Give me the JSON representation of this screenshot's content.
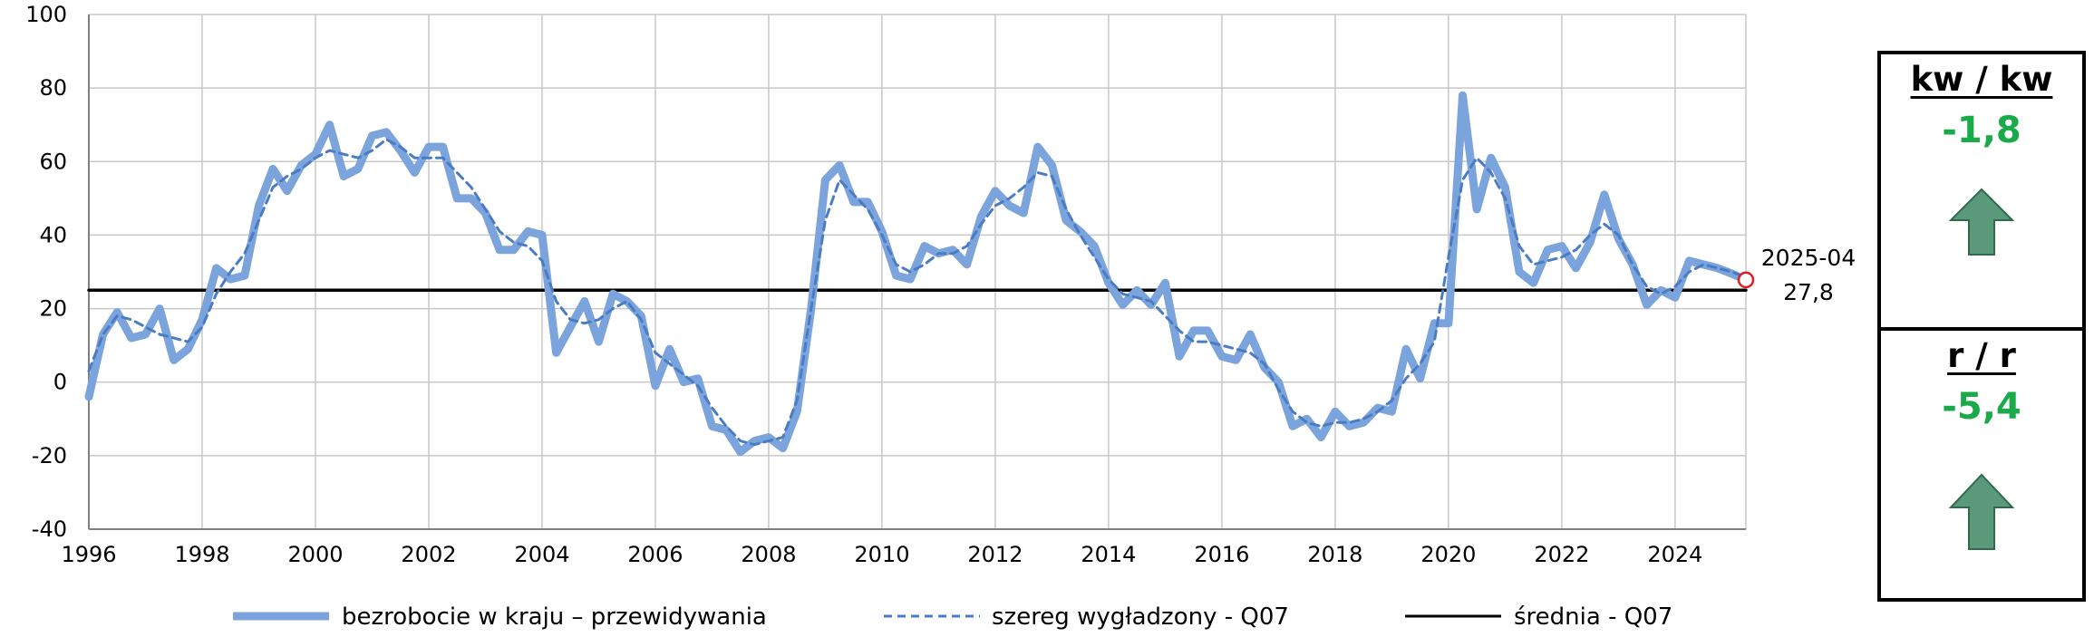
{
  "chart_data": {
    "type": "line",
    "title": "",
    "xlabel": "",
    "ylabel": "",
    "xlim": [
      1996,
      2025.25
    ],
    "ylim": [
      -40,
      100
    ],
    "x_ticks": [
      "1996",
      "1998",
      "2000",
      "2002",
      "2004",
      "2006",
      "2008",
      "2010",
      "2012",
      "2014",
      "2016",
      "2018",
      "2020",
      "2022",
      "2024"
    ],
    "y_ticks": [
      "100",
      "80",
      "60",
      "40",
      "20",
      "0",
      "-20",
      "-40"
    ],
    "grid": true,
    "legend_position": "bottom",
    "series": [
      {
        "name": "bezrobocie w kraju – przewidywania",
        "style": "solid-thick",
        "color": "#7ba3dc",
        "points": [
          [
            1996.0,
            -4
          ],
          [
            1996.25,
            13
          ],
          [
            1996.5,
            19
          ],
          [
            1996.75,
            12
          ],
          [
            1997.0,
            13
          ],
          [
            1997.25,
            20
          ],
          [
            1997.5,
            6
          ],
          [
            1997.75,
            9
          ],
          [
            1998.0,
            17
          ],
          [
            1998.25,
            31
          ],
          [
            1998.5,
            28
          ],
          [
            1998.75,
            29
          ],
          [
            1999.0,
            48
          ],
          [
            1999.25,
            58
          ],
          [
            1999.5,
            52
          ],
          [
            1999.75,
            59
          ],
          [
            2000.0,
            62
          ],
          [
            2000.25,
            70
          ],
          [
            2000.5,
            56
          ],
          [
            2000.75,
            58
          ],
          [
            2001.0,
            67
          ],
          [
            2001.25,
            68
          ],
          [
            2001.5,
            63
          ],
          [
            2001.75,
            57
          ],
          [
            2002.0,
            64
          ],
          [
            2002.25,
            64
          ],
          [
            2002.5,
            50
          ],
          [
            2002.75,
            50
          ],
          [
            2003.0,
            46
          ],
          [
            2003.25,
            36
          ],
          [
            2003.5,
            36
          ],
          [
            2003.75,
            41
          ],
          [
            2004.0,
            40
          ],
          [
            2004.25,
            8
          ],
          [
            2004.5,
            15
          ],
          [
            2004.75,
            22
          ],
          [
            2005.0,
            11
          ],
          [
            2005.25,
            24
          ],
          [
            2005.5,
            22
          ],
          [
            2005.75,
            18
          ],
          [
            2006.0,
            -1
          ],
          [
            2006.25,
            9
          ],
          [
            2006.5,
            0
          ],
          [
            2006.75,
            1
          ],
          [
            2007.0,
            -12
          ],
          [
            2007.25,
            -13
          ],
          [
            2007.5,
            -19
          ],
          [
            2007.75,
            -16
          ],
          [
            2008.0,
            -15
          ],
          [
            2008.25,
            -18
          ],
          [
            2008.5,
            -8
          ],
          [
            2008.75,
            20
          ],
          [
            2009.0,
            55
          ],
          [
            2009.25,
            59
          ],
          [
            2009.5,
            49
          ],
          [
            2009.75,
            49
          ],
          [
            2010.0,
            41
          ],
          [
            2010.25,
            29
          ],
          [
            2010.5,
            28
          ],
          [
            2010.75,
            37
          ],
          [
            2011.0,
            35
          ],
          [
            2011.25,
            36
          ],
          [
            2011.5,
            32
          ],
          [
            2011.75,
            45
          ],
          [
            2012.0,
            52
          ],
          [
            2012.25,
            48
          ],
          [
            2012.5,
            46
          ],
          [
            2012.75,
            64
          ],
          [
            2013.0,
            59
          ],
          [
            2013.25,
            44
          ],
          [
            2013.5,
            41
          ],
          [
            2013.75,
            37
          ],
          [
            2014.0,
            27
          ],
          [
            2014.25,
            21
          ],
          [
            2014.5,
            25
          ],
          [
            2014.75,
            21
          ],
          [
            2015.0,
            27
          ],
          [
            2015.25,
            7
          ],
          [
            2015.5,
            14
          ],
          [
            2015.75,
            14
          ],
          [
            2016.0,
            7
          ],
          [
            2016.25,
            6
          ],
          [
            2016.5,
            13
          ],
          [
            2016.75,
            4
          ],
          [
            2017.0,
            0
          ],
          [
            2017.25,
            -12
          ],
          [
            2017.5,
            -10
          ],
          [
            2017.75,
            -15
          ],
          [
            2018.0,
            -8
          ],
          [
            2018.25,
            -12
          ],
          [
            2018.5,
            -11
          ],
          [
            2018.75,
            -7
          ],
          [
            2019.0,
            -8
          ],
          [
            2019.25,
            9
          ],
          [
            2019.5,
            1
          ],
          [
            2019.75,
            16
          ],
          [
            2020.0,
            16
          ],
          [
            2020.25,
            78
          ],
          [
            2020.5,
            47
          ],
          [
            2020.75,
            61
          ],
          [
            2021.0,
            53
          ],
          [
            2021.25,
            30
          ],
          [
            2021.5,
            27
          ],
          [
            2021.75,
            36
          ],
          [
            2022.0,
            37
          ],
          [
            2022.25,
            31
          ],
          [
            2022.5,
            38
          ],
          [
            2022.75,
            51
          ],
          [
            2023.0,
            39
          ],
          [
            2023.25,
            32
          ],
          [
            2023.5,
            21
          ],
          [
            2023.75,
            25
          ],
          [
            2024.0,
            23
          ],
          [
            2024.25,
            33
          ],
          [
            2024.5,
            32
          ],
          [
            2024.75,
            31
          ],
          [
            2025.0,
            29.5
          ],
          [
            2025.25,
            27.8
          ]
        ]
      },
      {
        "name": "szereg wygładzony - Q07",
        "style": "dashed",
        "color": "#4a7cc4",
        "points": [
          [
            1996.0,
            3
          ],
          [
            1996.25,
            13
          ],
          [
            1996.5,
            18
          ],
          [
            1996.75,
            17
          ],
          [
            1997.0,
            15
          ],
          [
            1997.25,
            13
          ],
          [
            1997.5,
            12
          ],
          [
            1997.75,
            11
          ],
          [
            1998.0,
            15
          ],
          [
            1998.25,
            24
          ],
          [
            1998.5,
            30
          ],
          [
            1998.75,
            35
          ],
          [
            1999.0,
            44
          ],
          [
            1999.25,
            53
          ],
          [
            1999.5,
            56
          ],
          [
            1999.75,
            58
          ],
          [
            2000.0,
            61
          ],
          [
            2000.25,
            63
          ],
          [
            2000.5,
            62
          ],
          [
            2000.75,
            61
          ],
          [
            2001.0,
            63
          ],
          [
            2001.25,
            66
          ],
          [
            2001.5,
            64
          ],
          [
            2001.75,
            61
          ],
          [
            2002.0,
            61
          ],
          [
            2002.25,
            61
          ],
          [
            2002.5,
            57
          ],
          [
            2002.75,
            53
          ],
          [
            2003.0,
            47
          ],
          [
            2003.25,
            41
          ],
          [
            2003.5,
            38
          ],
          [
            2003.75,
            37
          ],
          [
            2004.0,
            33
          ],
          [
            2004.25,
            22
          ],
          [
            2004.5,
            17
          ],
          [
            2004.75,
            16
          ],
          [
            2005.0,
            17
          ],
          [
            2005.25,
            20
          ],
          [
            2005.5,
            22
          ],
          [
            2005.75,
            17
          ],
          [
            2006.0,
            8
          ],
          [
            2006.25,
            5
          ],
          [
            2006.5,
            2
          ],
          [
            2006.75,
            -1
          ],
          [
            2007.0,
            -7
          ],
          [
            2007.25,
            -12
          ],
          [
            2007.5,
            -16
          ],
          [
            2007.75,
            -17
          ],
          [
            2008.0,
            -16
          ],
          [
            2008.25,
            -15
          ],
          [
            2008.5,
            -5
          ],
          [
            2008.75,
            20
          ],
          [
            2009.0,
            44
          ],
          [
            2009.25,
            55
          ],
          [
            2009.5,
            51
          ],
          [
            2009.75,
            47
          ],
          [
            2010.0,
            40
          ],
          [
            2010.25,
            32
          ],
          [
            2010.5,
            30
          ],
          [
            2010.75,
            32
          ],
          [
            2011.0,
            35
          ],
          [
            2011.25,
            35
          ],
          [
            2011.5,
            37
          ],
          [
            2011.75,
            43
          ],
          [
            2012.0,
            48
          ],
          [
            2012.25,
            50
          ],
          [
            2012.5,
            53
          ],
          [
            2012.75,
            57
          ],
          [
            2013.0,
            56
          ],
          [
            2013.25,
            47
          ],
          [
            2013.5,
            40
          ],
          [
            2013.75,
            34
          ],
          [
            2014.0,
            28
          ],
          [
            2014.25,
            24
          ],
          [
            2014.5,
            23
          ],
          [
            2014.75,
            22
          ],
          [
            2015.0,
            18
          ],
          [
            2015.25,
            14
          ],
          [
            2015.5,
            11
          ],
          [
            2015.75,
            11
          ],
          [
            2016.0,
            10
          ],
          [
            2016.25,
            9
          ],
          [
            2016.5,
            8
          ],
          [
            2016.75,
            5
          ],
          [
            2017.0,
            -2
          ],
          [
            2017.25,
            -8
          ],
          [
            2017.5,
            -11
          ],
          [
            2017.75,
            -12
          ],
          [
            2018.0,
            -11
          ],
          [
            2018.25,
            -11
          ],
          [
            2018.5,
            -10
          ],
          [
            2018.75,
            -8
          ],
          [
            2019.0,
            -5
          ],
          [
            2019.25,
            1
          ],
          [
            2019.5,
            5
          ],
          [
            2019.75,
            11
          ],
          [
            2020.0,
            34
          ],
          [
            2020.25,
            55
          ],
          [
            2020.5,
            61
          ],
          [
            2020.75,
            57
          ],
          [
            2021.0,
            50
          ],
          [
            2021.25,
            37
          ],
          [
            2021.5,
            32
          ],
          [
            2021.75,
            33
          ],
          [
            2022.0,
            34
          ],
          [
            2022.25,
            36
          ],
          [
            2022.5,
            40
          ],
          [
            2022.75,
            43
          ],
          [
            2023.0,
            40
          ],
          [
            2023.25,
            32
          ],
          [
            2023.5,
            26
          ],
          [
            2023.75,
            24
          ],
          [
            2024.0,
            26
          ],
          [
            2024.25,
            30
          ],
          [
            2024.5,
            32
          ],
          [
            2024.75,
            31
          ],
          [
            2025.0,
            30
          ],
          [
            2025.25,
            28.5
          ]
        ]
      },
      {
        "name": "średnia - Q07",
        "style": "solid",
        "color": "#000000",
        "points": [
          [
            1996.0,
            25
          ],
          [
            2025.25,
            25
          ]
        ]
      }
    ],
    "annotation": {
      "x": 2025.25,
      "y": 27.8,
      "label_date": "2025-04",
      "label_value": "27,8",
      "marker_color": "#e02020"
    }
  },
  "panels": {
    "qoq": {
      "title": "kw / kw",
      "value": "-1,8",
      "value_color": "#1aaa4a",
      "arrow_icon": "up-arrow",
      "arrow_color": "#5a9a7a"
    },
    "yoy": {
      "title": "r / r",
      "value": "-5,4",
      "value_color": "#1aaa4a",
      "arrow_icon": "up-arrow",
      "arrow_color": "#5a9a7a"
    }
  }
}
